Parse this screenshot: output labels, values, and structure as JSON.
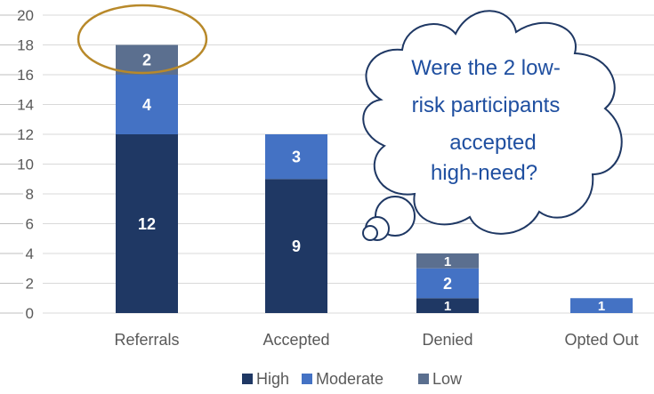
{
  "chart_data": {
    "type": "bar",
    "stacked": true,
    "categories": [
      "Referrals",
      "Accepted",
      "Denied",
      "Opted Out"
    ],
    "series": [
      {
        "name": "High",
        "values": [
          12,
          9,
          1,
          0
        ],
        "color": "#1f3864"
      },
      {
        "name": "Moderate",
        "values": [
          4,
          3,
          2,
          1
        ],
        "color": "#4472c4"
      },
      {
        "name": "Low",
        "values": [
          2,
          0,
          1,
          0
        ],
        "color": "#5b6f8f"
      }
    ],
    "yticks": [
      "0",
      "2",
      "4",
      "6",
      "8",
      "10",
      "12",
      "14",
      "16",
      "18",
      "20"
    ],
    "ylim": [
      0,
      20
    ],
    "grid": true,
    "legend_position": "bottom",
    "annotations": {
      "callout_lines": [
        "Were the 2 low-",
        "risk participants",
        "accepted",
        "high-need?"
      ],
      "highlight_target": "Referrals Low segment",
      "highlight_color": "#b8892a",
      "callout_text_color": "#1f4fa0"
    }
  }
}
